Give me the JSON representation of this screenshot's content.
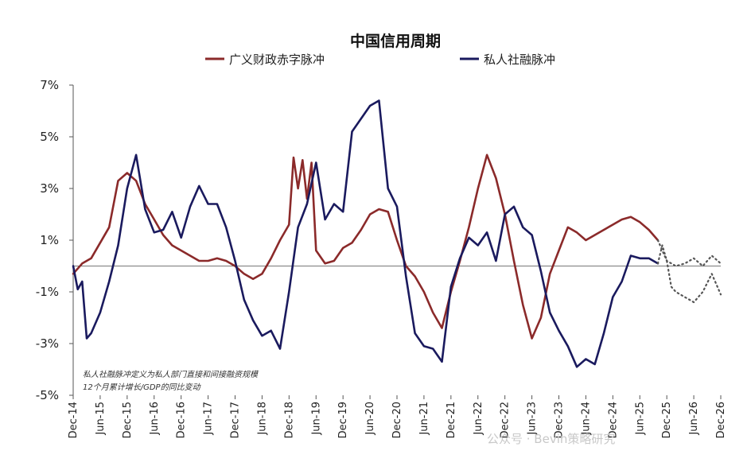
{
  "chart_data": {
    "type": "line",
    "title": "中国信用周期",
    "ylim": [
      -5,
      7
    ],
    "yticks": [
      "7%",
      "5%",
      "3%",
      "1%",
      "-1%",
      "-3%",
      "-5%"
    ],
    "ytick_values": [
      7,
      5,
      3,
      1,
      -1,
      -3,
      -5
    ],
    "x_tick_labels": [
      "Dec-14",
      "Jun-15",
      "Dec-15",
      "Jun-16",
      "Dec-16",
      "Jun-17",
      "Dec-17",
      "Jun-18",
      "Dec-18",
      "Jun-19",
      "Dec-19",
      "Jun-20",
      "Dec-20",
      "Jun-21",
      "Dec-21",
      "Jun-22",
      "Dec-22",
      "Jun-23",
      "Dec-23",
      "Jun-24",
      "Dec-24",
      "Jun-25",
      "Dec-25",
      "Jun-26",
      "Dec-26"
    ],
    "grid": false,
    "legend": "top",
    "series": [
      {
        "name": "广义财政赤字脉冲",
        "color": "#8B2A2A",
        "style": "solid",
        "x": [
          "2014-12",
          "2015-02",
          "2015-04",
          "2015-06",
          "2015-08",
          "2015-10",
          "2015-12",
          "2016-02",
          "2016-04",
          "2016-06",
          "2016-08",
          "2016-10",
          "2016-12",
          "2017-02",
          "2017-04",
          "2017-06",
          "2017-08",
          "2017-10",
          "2017-12",
          "2018-02",
          "2018-04",
          "2018-06",
          "2018-08",
          "2018-10",
          "2018-12",
          "2019-01",
          "2019-02",
          "2019-03",
          "2019-04",
          "2019-05",
          "2019-06",
          "2019-08",
          "2019-10",
          "2019-12",
          "2020-02",
          "2020-04",
          "2020-06",
          "2020-08",
          "2020-10",
          "2020-12",
          "2021-02",
          "2021-04",
          "2021-06",
          "2021-08",
          "2021-10",
          "2021-12",
          "2022-02",
          "2022-04",
          "2022-06",
          "2022-08",
          "2022-10",
          "2022-12",
          "2023-02",
          "2023-04",
          "2023-06",
          "2023-08",
          "2023-10",
          "2023-12",
          "2024-02",
          "2024-04",
          "2024-06",
          "2024-08",
          "2024-10",
          "2024-12",
          "2025-02",
          "2025-04",
          "2025-06",
          "2025-08",
          "2025-10"
        ],
        "values": [
          -0.3,
          0.1,
          0.3,
          0.9,
          1.5,
          3.3,
          3.6,
          3.3,
          2.4,
          1.8,
          1.2,
          0.8,
          0.6,
          0.4,
          0.2,
          0.2,
          0.3,
          0.2,
          0.0,
          -0.3,
          -0.5,
          -0.3,
          0.3,
          1.0,
          1.6,
          4.2,
          3.0,
          4.1,
          2.6,
          4.0,
          0.6,
          0.1,
          0.2,
          0.7,
          0.9,
          1.4,
          2.0,
          2.2,
          2.1,
          1.0,
          0.0,
          -0.4,
          -1.0,
          -1.8,
          -2.4,
          -1.0,
          0.2,
          1.5,
          3.0,
          4.3,
          3.4,
          2.0,
          0.2,
          -1.5,
          -2.8,
          -2.0,
          -0.3,
          0.6,
          1.5,
          1.3,
          1.0,
          1.2,
          1.4,
          1.6,
          1.8,
          1.9,
          1.7,
          1.4,
          1.0
        ]
      },
      {
        "name": "私人社融脉冲",
        "color": "#1A1A5E",
        "style": "solid",
        "x": [
          "2014-12",
          "2015-01",
          "2015-02",
          "2015-03",
          "2015-04",
          "2015-06",
          "2015-08",
          "2015-10",
          "2015-12",
          "2016-02",
          "2016-04",
          "2016-06",
          "2016-08",
          "2016-10",
          "2016-12",
          "2017-02",
          "2017-04",
          "2017-06",
          "2017-08",
          "2017-10",
          "2017-12",
          "2018-02",
          "2018-04",
          "2018-06",
          "2018-08",
          "2018-10",
          "2018-12",
          "2019-02",
          "2019-04",
          "2019-06",
          "2019-08",
          "2019-10",
          "2019-12",
          "2020-02",
          "2020-04",
          "2020-06",
          "2020-08",
          "2020-10",
          "2020-12",
          "2021-02",
          "2021-04",
          "2021-06",
          "2021-08",
          "2021-10",
          "2021-12",
          "2022-02",
          "2022-04",
          "2022-06",
          "2022-08",
          "2022-10",
          "2022-12",
          "2023-02",
          "2023-04",
          "2023-06",
          "2023-08",
          "2023-10",
          "2023-12",
          "2024-02",
          "2024-04",
          "2024-06",
          "2024-08",
          "2024-10",
          "2024-12",
          "2025-02",
          "2025-04",
          "2025-06",
          "2025-08",
          "2025-10"
        ],
        "values": [
          0.0,
          -0.9,
          -0.6,
          -2.8,
          -2.6,
          -1.8,
          -0.6,
          0.8,
          3.0,
          4.3,
          2.2,
          1.3,
          1.4,
          2.1,
          1.1,
          2.3,
          3.1,
          2.4,
          2.4,
          1.5,
          0.2,
          -1.3,
          -2.1,
          -2.7,
          -2.5,
          -3.2,
          -1.0,
          1.5,
          2.4,
          4.0,
          1.8,
          2.4,
          2.1,
          5.2,
          5.7,
          6.2,
          6.4,
          3.0,
          2.3,
          -0.4,
          -2.6,
          -3.1,
          -3.2,
          -3.7,
          -0.8,
          0.3,
          1.1,
          0.8,
          1.3,
          0.2,
          2.0,
          2.3,
          1.5,
          1.2,
          -0.2,
          -1.8,
          -2.5,
          -3.1,
          -3.9,
          -3.6,
          -3.8,
          -2.6,
          -1.2,
          -0.6,
          0.4,
          0.3,
          0.3,
          0.1
        ]
      },
      {
        "name": "",
        "color": "#555555",
        "style": "dotted",
        "x": [
          "2025-10",
          "2025-11",
          "2025-12",
          "2026-01",
          "2026-02",
          "2026-04",
          "2026-06",
          "2026-08",
          "2026-10",
          "2026-12"
        ],
        "values": [
          0.1,
          0.8,
          0.2,
          -0.8,
          -1.0,
          -1.2,
          -1.4,
          -1.0,
          -0.3,
          -1.1
        ]
      },
      {
        "name": "",
        "color": "#555555",
        "style": "dotted",
        "x": [
          "2025-10",
          "2025-12",
          "2026-02",
          "2026-04",
          "2026-06",
          "2026-08",
          "2026-10",
          "2026-12"
        ],
        "values": [
          1.0,
          0.2,
          0.0,
          0.1,
          0.3,
          0.0,
          0.4,
          0.1
        ]
      }
    ],
    "annotation": [
      "私人社融脉冲定义为私人部门直接和间接融资规模",
      "12个月累计增长/GDP的同比变动"
    ]
  },
  "watermark": "公众号 · Bevin策略研究"
}
